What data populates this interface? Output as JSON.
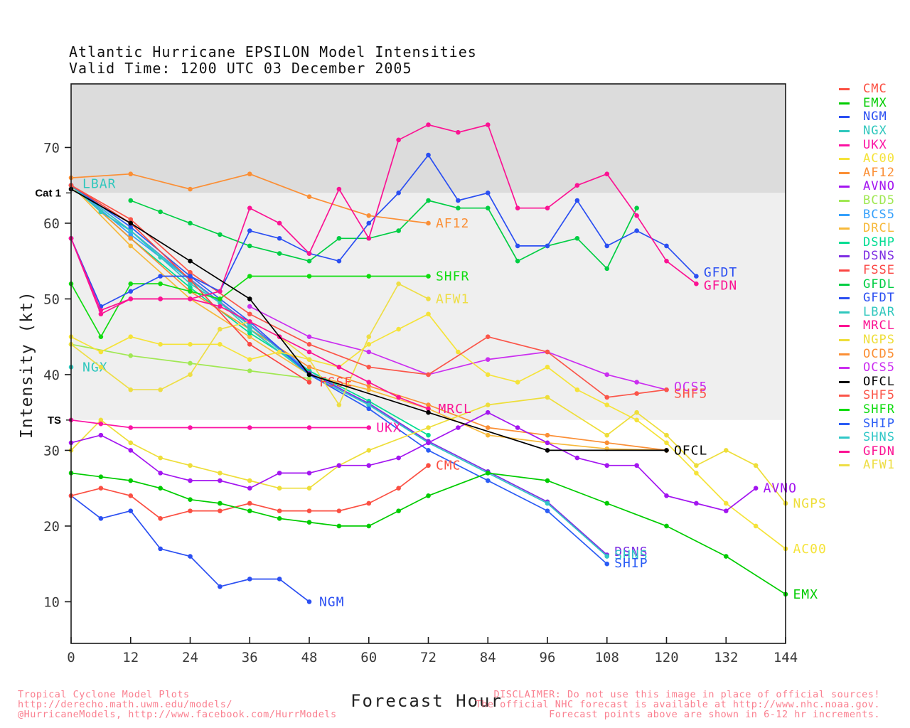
{
  "title": {
    "line1": "Atlantic Hurricane EPSILON Model Intensities",
    "line2": "Valid Time: 1200 UTC 03 December 2005"
  },
  "footer": {
    "credit_line1": "Tropical Cyclone Model Plots",
    "credit_line2": "http://derecho.math.uwm.edu/models/",
    "credit_line3": "@HurricaneModels, http://www.facebook.com/HurrModels",
    "disclaimer_line1": "DISCLAIMER: Do not use this image in place of official sources!",
    "disclaimer_line2": "The official NHC forecast is available at http://www.nhc.noaa.gov.",
    "disclaimer_line3": "Forecast points above are shown in 6-12 hr increments."
  },
  "legend_order": [
    "CMC",
    "EMX",
    "NGM",
    "NGX",
    "UKX",
    "AC00",
    "AF12",
    "AVNO",
    "BCD5",
    "BCS5",
    "DRCL",
    "DSHP",
    "DSNS",
    "FSSE",
    "GFDL",
    "GFDT",
    "LBAR",
    "MRCL",
    "NGPS",
    "OCD5",
    "OCS5",
    "OFCL",
    "SHF5",
    "SHFR",
    "SHIP",
    "SHNS",
    "GFDN",
    "AFW1"
  ],
  "chart_data": {
    "type": "line",
    "title": "Atlantic Hurricane EPSILON Model Intensities",
    "xlabel": "Forecast Hour",
    "ylabel": "Intensity (kt)",
    "xlim": [
      0,
      144
    ],
    "ylim": [
      4.5,
      78.4
    ],
    "grid": false,
    "legend_position": "right-outside",
    "x_ticks": [
      0,
      12,
      24,
      36,
      48,
      60,
      72,
      84,
      96,
      108,
      120,
      132,
      144
    ],
    "y_ticks": [
      10,
      20,
      30,
      40,
      50,
      60,
      70
    ],
    "y_annotations": [
      {
        "label": "Cat 1",
        "value": 64
      },
      {
        "label": "TS",
        "value": 34
      }
    ],
    "bands": [
      {
        "from": 64,
        "to": 78.4,
        "color": "#dcdcdc"
      },
      {
        "from": 34,
        "to": 64,
        "color": "#efefef"
      }
    ],
    "series": [
      {
        "name": "BCD5",
        "color": "#a0e852",
        "x": [
          0,
          12,
          24,
          36,
          48
        ],
        "y": [
          44,
          42.5,
          41.5,
          40.5,
          39.5
        ]
      },
      {
        "name": "BCS5",
        "color": "#35a0fb",
        "x": [
          0,
          12,
          24,
          36,
          48,
          60,
          72
        ],
        "y": [
          65,
          58.5,
          52.5,
          46.5,
          40.5,
          36,
          31
        ]
      },
      {
        "name": "DRCL",
        "color": "#f7b93a",
        "x": [
          0,
          12,
          24,
          36,
          48,
          60,
          72,
          84,
          96,
          108,
          120
        ],
        "y": [
          65,
          57,
          50,
          45,
          40,
          38,
          35.5,
          32,
          31,
          30.2,
          30
        ]
      },
      {
        "name": "DSHP",
        "color": "#00dd92",
        "x": [
          0,
          12,
          24,
          36,
          48,
          60,
          72
        ],
        "y": [
          65,
          58,
          51.5,
          45.5,
          40.5,
          36.5,
          32
        ]
      },
      {
        "name": "OCD5",
        "color": "#fb8f35",
        "x": [
          0,
          12,
          24,
          36,
          48,
          60,
          72,
          84,
          96,
          108,
          120
        ],
        "y": [
          65,
          58,
          51,
          46,
          41,
          38.5,
          36,
          33,
          32,
          31,
          30
        ]
      },
      {
        "name": "OCS5",
        "color": "#cb2ef0",
        "x": [
          36,
          48,
          60,
          72,
          84,
          96,
          108,
          114,
          120
        ],
        "y": [
          49,
          45,
          43,
          40,
          42,
          43,
          40,
          39,
          38
        ],
        "label": {
          "text": "OCS5",
          "x": 121.5,
          "y": 38.4
        }
      },
      {
        "name": "DSNS",
        "color": "#7e2ee3",
        "x": [
          0,
          12,
          24,
          36,
          48,
          60,
          72,
          84,
          96,
          108
        ],
        "y": [
          65,
          59,
          52.6,
          46.6,
          40.2,
          36.2,
          31.2,
          27.2,
          23.2,
          16.2
        ],
        "label": {
          "text": "DSNS",
          "x": 109.5,
          "y": 16.6
        }
      },
      {
        "name": "LBAR",
        "color": "#2fc7bd",
        "x": [
          0,
          6,
          12,
          18,
          24,
          30,
          36,
          42,
          48
        ],
        "y": [
          65,
          61.5,
          59,
          55.5,
          52,
          49.5,
          46,
          43,
          40
        ],
        "label": {
          "text": "LBAR",
          "x": 2.3,
          "y": 65.2
        }
      },
      {
        "name": "SHNS",
        "color": "#2fc7c7",
        "x": [
          0,
          12,
          24,
          36,
          48,
          60,
          72,
          84,
          96,
          108
        ],
        "y": [
          65,
          59,
          52.5,
          46.5,
          40,
          36,
          31,
          27,
          23,
          16
        ],
        "label": {
          "text": "SHNS",
          "x": 109.5,
          "y": 16.2
        }
      },
      {
        "name": "SHIP",
        "color": "#2a5cf5",
        "x": [
          0,
          12,
          24,
          36,
          48,
          60,
          72,
          84,
          96,
          108
        ],
        "y": [
          65,
          59.5,
          53,
          47,
          40,
          35.5,
          30,
          26,
          22,
          15
        ],
        "label": {
          "text": "SHIP",
          "x": 109.5,
          "y": 15.1
        }
      },
      {
        "name": "NGX",
        "color": "#2fc7bd",
        "x": [
          0
        ],
        "y": [
          41
        ],
        "label": {
          "text": "NGX",
          "x": 2.3,
          "y": 41
        }
      },
      {
        "name": "NGM",
        "color": "#2b4ff2",
        "x": [
          0,
          6,
          12,
          18,
          24,
          30,
          36,
          42,
          48
        ],
        "y": [
          24,
          21,
          22,
          17,
          16,
          12,
          13,
          13,
          10
        ],
        "label": {
          "text": "NGM",
          "x": 50,
          "y": 10
        }
      },
      {
        "name": "CMC",
        "color": "#fb4f42",
        "x": [
          0,
          6,
          12,
          18,
          24,
          30,
          36,
          42,
          48,
          54,
          60,
          66,
          72
        ],
        "y": [
          24,
          25,
          24,
          21,
          22,
          22,
          23,
          22,
          22,
          22,
          23,
          25,
          28
        ],
        "label": {
          "text": "CMC",
          "x": 73.5,
          "y": 28
        }
      },
      {
        "name": "EMX",
        "color": "#00cc00",
        "x": [
          0,
          6,
          12,
          18,
          24,
          30,
          36,
          42,
          48,
          54,
          60,
          66,
          72,
          84,
          96,
          108,
          120,
          132,
          144
        ],
        "y": [
          27,
          26.5,
          26,
          25,
          23.5,
          23,
          22,
          21,
          20.5,
          20,
          20,
          22,
          24,
          27,
          26,
          23,
          20,
          16,
          11
        ],
        "label": {
          "text": "EMX",
          "x": 145.5,
          "y": 11
        }
      },
      {
        "name": "AC00",
        "color": "#f5e339",
        "x": [
          0,
          6,
          12,
          18,
          24,
          30,
          36,
          42,
          48,
          54,
          60,
          66,
          72,
          78,
          84,
          90,
          96,
          102,
          108,
          114,
          120,
          126,
          132,
          138,
          144
        ],
        "y": [
          45,
          43,
          45,
          44,
          44,
          44,
          42,
          43,
          42,
          41,
          44,
          46,
          48,
          43,
          40,
          39,
          41,
          38,
          36,
          34,
          31,
          27,
          23,
          20,
          17
        ],
        "label": {
          "text": "AC00",
          "x": 145.5,
          "y": 17
        }
      },
      {
        "name": "NGPS",
        "color": "#eede39",
        "x": [
          0,
          6,
          12,
          18,
          24,
          30,
          36,
          42,
          48,
          54,
          60,
          72,
          84,
          96,
          108,
          114,
          120,
          126,
          132,
          138,
          144
        ],
        "y": [
          30,
          34,
          31,
          29,
          28,
          27,
          26,
          25,
          25,
          28,
          30,
          33,
          36,
          37,
          32,
          35,
          32,
          28,
          30,
          28,
          23
        ],
        "label": {
          "text": "NGPS",
          "x": 145.5,
          "y": 23
        }
      },
      {
        "name": "AFW1",
        "color": "#eede45",
        "x": [
          0,
          6,
          12,
          18,
          24,
          30,
          36,
          42,
          48,
          54,
          60,
          66,
          72
        ],
        "y": [
          44,
          41,
          38,
          38,
          40,
          46,
          47,
          45,
          42,
          36,
          45,
          52,
          50
        ],
        "label": {
          "text": "AFW1",
          "x": 73.5,
          "y": 50
        }
      },
      {
        "name": "UKX",
        "color": "#fb13a3",
        "x": [
          0,
          6,
          12,
          24,
          36,
          48,
          60
        ],
        "y": [
          34,
          33.5,
          33,
          33,
          33,
          33,
          33
        ],
        "label": {
          "text": "UKX",
          "x": 61.5,
          "y": 33
        }
      },
      {
        "name": "AVNO",
        "color": "#a315f0",
        "x": [
          0,
          6,
          12,
          18,
          24,
          30,
          36,
          42,
          48,
          54,
          60,
          66,
          72,
          78,
          84,
          90,
          96,
          102,
          108,
          114,
          120,
          126,
          132,
          138
        ],
        "y": [
          31,
          32,
          30,
          27,
          26,
          26,
          25,
          27,
          27,
          28,
          28,
          29,
          31,
          33,
          35,
          33,
          31,
          29,
          28,
          28,
          24,
          23,
          22,
          25
        ],
        "label": {
          "text": "AVNO",
          "x": 139.5,
          "y": 25
        }
      },
      {
        "name": "SHFR",
        "color": "#10dc10",
        "x": [
          0,
          6,
          12,
          18,
          24,
          30,
          36,
          48,
          60,
          72
        ],
        "y": [
          52,
          45,
          52,
          52,
          51,
          50,
          53,
          53,
          53,
          53
        ],
        "label": {
          "text": "SHFR",
          "x": 73.5,
          "y": 53
        }
      },
      {
        "name": "GFDL",
        "color": "#00ce44",
        "x": [
          12,
          18,
          24,
          30,
          36,
          42,
          48,
          54,
          60,
          66,
          72,
          78,
          84,
          90,
          96,
          102,
          108,
          114
        ],
        "y": [
          63,
          61.5,
          60,
          58.5,
          57,
          56,
          55,
          58,
          58,
          59,
          63,
          62,
          62,
          55,
          57,
          58,
          54,
          62
        ]
      },
      {
        "name": "FSSE",
        "color": "#fb4542",
        "x": [
          0,
          12,
          24,
          36,
          48
        ],
        "y": [
          65,
          60,
          52.5,
          44,
          39
        ],
        "label": {
          "text": "FSSE",
          "x": 50,
          "y": 39
        }
      },
      {
        "name": "SHF5",
        "color": "#fb5549",
        "x": [
          0,
          12,
          24,
          36,
          48,
          60,
          72,
          84,
          96,
          108,
          114,
          120
        ],
        "y": [
          65,
          60.5,
          53.5,
          48,
          44,
          41,
          40,
          45,
          43,
          37,
          37.5,
          38
        ],
        "label": {
          "text": "SHF5",
          "x": 121.5,
          "y": 37.5
        }
      },
      {
        "name": "MRCL",
        "color": "#fb1393",
        "x": [
          0,
          6,
          12,
          18,
          24,
          30,
          36,
          42,
          48,
          54,
          60,
          66,
          72
        ],
        "y": [
          58,
          48,
          50,
          50,
          50,
          49,
          47,
          45,
          43,
          41,
          39,
          37,
          35.5
        ],
        "label": {
          "text": "MRCL",
          "x": 74,
          "y": 35.5
        }
      },
      {
        "name": "AF12",
        "color": "#fb8f35",
        "x": [
          0,
          12,
          24,
          36,
          48,
          60,
          72
        ],
        "y": [
          66,
          66.5,
          64.5,
          66.5,
          63.5,
          61,
          60
        ],
        "label": {
          "text": "AF12",
          "x": 73.5,
          "y": 60
        }
      },
      {
        "name": "GFDT",
        "color": "#2b4ff2",
        "x": [
          0,
          6,
          12,
          18,
          24,
          30,
          36,
          42,
          48,
          54,
          60,
          66,
          72,
          78,
          84,
          90,
          96,
          102,
          108,
          114,
          120,
          126
        ],
        "y": [
          58,
          49,
          51,
          53,
          53,
          51,
          59,
          58,
          56,
          55,
          60,
          64,
          69,
          63,
          64,
          57,
          57,
          63,
          57,
          59,
          57,
          53
        ],
        "label": {
          "text": "GFDT",
          "x": 127.5,
          "y": 53.5
        }
      },
      {
        "name": "GFDN",
        "color": "#fb1393",
        "x": [
          0,
          6,
          12,
          18,
          24,
          30,
          36,
          42,
          48,
          54,
          60,
          66,
          72,
          78,
          84,
          90,
          96,
          102,
          108,
          114,
          120,
          126
        ],
        "y": [
          58,
          48.5,
          50,
          50,
          50,
          51,
          62,
          60,
          56,
          64.5,
          58,
          71,
          73,
          72,
          73,
          62,
          62,
          65,
          66.5,
          61,
          55,
          52
        ],
        "label": {
          "text": "GFDN",
          "x": 127.5,
          "y": 51.8
        }
      },
      {
        "name": "OFCL",
        "color": "#000000",
        "x": [
          0,
          12,
          24,
          36,
          48,
          72,
          96,
          120
        ],
        "y": [
          64.5,
          60,
          55,
          50,
          40,
          35,
          30,
          30
        ],
        "label": {
          "text": "OFCL",
          "x": 121.5,
          "y": 30
        }
      }
    ]
  }
}
